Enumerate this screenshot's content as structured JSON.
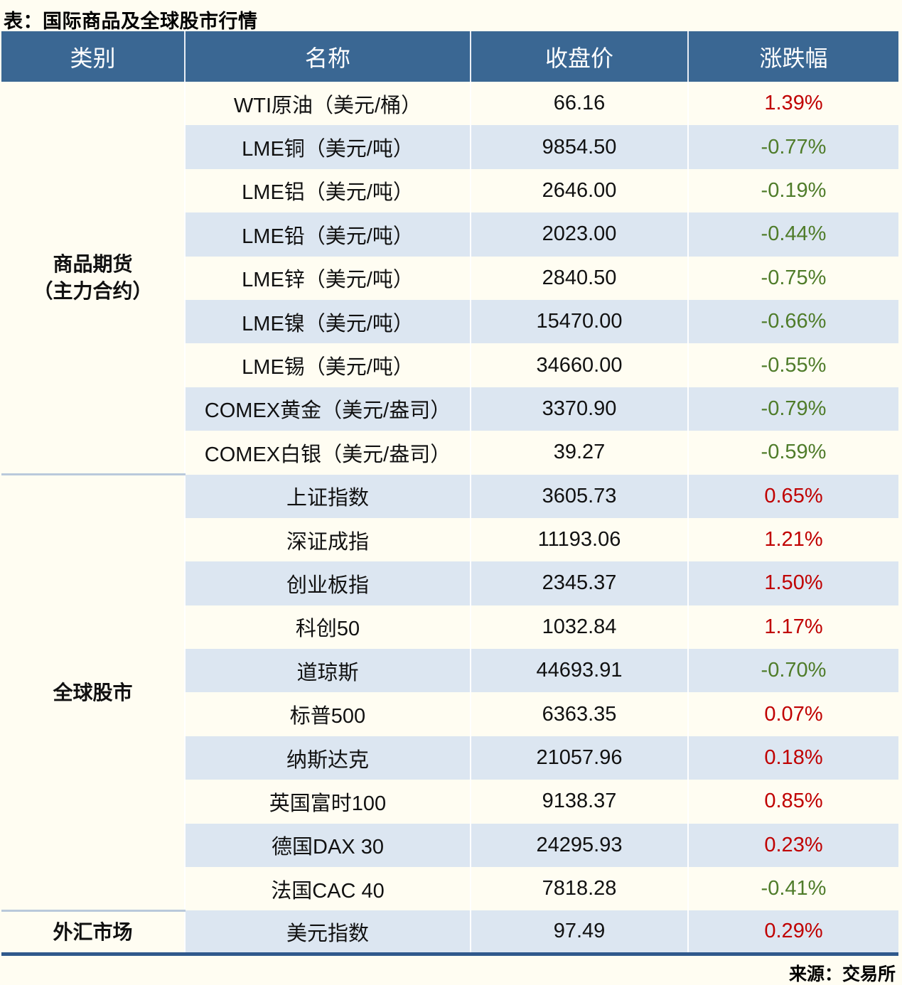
{
  "title": "表：国际商品及全球股市行情",
  "source": "来源：交易所",
  "colors": {
    "header_bg": "#3a6793",
    "header_text": "#ffffff",
    "stripe_row": "#dce6f1",
    "plain_row": "#fffdf2",
    "up_red": "#c00000",
    "down_green": "#4f7c2a",
    "table_bottom_border": "#30598c",
    "section_divider": "#b9c9db"
  },
  "table": {
    "headers": [
      "类别",
      "名称",
      "收盘价",
      "涨跌幅"
    ],
    "sections": [
      {
        "category_lines": [
          "商品期货",
          "（主力合约）"
        ],
        "rows": [
          {
            "name": "WTI原油（美元/桶）",
            "close": "66.16",
            "change": "1.39%"
          },
          {
            "name": "LME铜（美元/吨）",
            "close": "9854.50",
            "change": "-0.77%"
          },
          {
            "name": "LME铝（美元/吨）",
            "close": "2646.00",
            "change": "-0.19%"
          },
          {
            "name": "LME铅（美元/吨）",
            "close": "2023.00",
            "change": "-0.44%"
          },
          {
            "name": "LME锌（美元/吨）",
            "close": "2840.50",
            "change": "-0.75%"
          },
          {
            "name": "LME镍（美元/吨）",
            "close": "15470.00",
            "change": "-0.66%"
          },
          {
            "name": "LME锡（美元/吨）",
            "close": "34660.00",
            "change": "-0.55%"
          },
          {
            "name": "COMEX黄金（美元/盎司）",
            "close": "3370.90",
            "change": "-0.79%"
          },
          {
            "name": "COMEX白银（美元/盎司）",
            "close": "39.27",
            "change": "-0.59%"
          }
        ]
      },
      {
        "category_lines": [
          "全球股市"
        ],
        "rows": [
          {
            "name": "上证指数",
            "close": "3605.73",
            "change": "0.65%"
          },
          {
            "name": "深证成指",
            "close": "11193.06",
            "change": "1.21%"
          },
          {
            "name": "创业板指",
            "close": "2345.37",
            "change": "1.50%"
          },
          {
            "name": "科创50",
            "close": "1032.84",
            "change": "1.17%"
          },
          {
            "name": "道琼斯",
            "close": "44693.91",
            "change": "-0.70%"
          },
          {
            "name": "标普500",
            "close": "6363.35",
            "change": "0.07%"
          },
          {
            "name": "纳斯达克",
            "close": "21057.96",
            "change": "0.18%"
          },
          {
            "name": "英国富时100",
            "close": "9138.37",
            "change": "0.85%"
          },
          {
            "name": "德国DAX 30",
            "close": "24295.93",
            "change": "0.23%"
          },
          {
            "name": "法国CAC 40",
            "close": "7818.28",
            "change": "-0.41%"
          }
        ]
      },
      {
        "category_lines": [
          "外汇市场"
        ],
        "rows": [
          {
            "name": "美元指数",
            "close": "97.49",
            "change": "0.29%"
          }
        ]
      }
    ]
  },
  "chart_data": {
    "type": "table",
    "title": "表：国际商品及全球股市行情",
    "columns": [
      "类别",
      "名称",
      "收盘价",
      "涨跌幅"
    ],
    "rows": [
      [
        "商品期货（主力合约）",
        "WTI原油（美元/桶）",
        66.16,
        "1.39%"
      ],
      [
        "商品期货（主力合约）",
        "LME铜（美元/吨）",
        9854.5,
        "-0.77%"
      ],
      [
        "商品期货（主力合约）",
        "LME铝（美元/吨）",
        2646.0,
        "-0.19%"
      ],
      [
        "商品期货（主力合约）",
        "LME铅（美元/吨）",
        2023.0,
        "-0.44%"
      ],
      [
        "商品期货（主力合约）",
        "LME锌（美元/吨）",
        2840.5,
        "-0.75%"
      ],
      [
        "商品期货（主力合约）",
        "LME镍（美元/吨）",
        15470.0,
        "-0.66%"
      ],
      [
        "商品期货（主力合约）",
        "LME锡（美元/吨）",
        34660.0,
        "-0.55%"
      ],
      [
        "商品期货（主力合约）",
        "COMEX黄金（美元/盎司）",
        3370.9,
        "-0.79%"
      ],
      [
        "商品期货（主力合约）",
        "COMEX白银（美元/盎司）",
        39.27,
        "-0.59%"
      ],
      [
        "全球股市",
        "上证指数",
        3605.73,
        "0.65%"
      ],
      [
        "全球股市",
        "深证成指",
        11193.06,
        "1.21%"
      ],
      [
        "全球股市",
        "创业板指",
        2345.37,
        "1.50%"
      ],
      [
        "全球股市",
        "科创50",
        1032.84,
        "1.17%"
      ],
      [
        "全球股市",
        "道琼斯",
        44693.91,
        "-0.70%"
      ],
      [
        "全球股市",
        "标普500",
        6363.35,
        "0.07%"
      ],
      [
        "全球股市",
        "纳斯达克",
        21057.96,
        "0.18%"
      ],
      [
        "全球股市",
        "英国富时100",
        9138.37,
        "0.85%"
      ],
      [
        "全球股市",
        "德国DAX 30",
        24295.93,
        "0.23%"
      ],
      [
        "全球股市",
        "法国CAC 40",
        7818.28,
        "-0.41%"
      ],
      [
        "外汇市场",
        "美元指数",
        97.49,
        "0.29%"
      ]
    ],
    "notes": "涨跌幅红色为上涨(正值)，绿色为下跌(负值)；来源：交易所"
  }
}
